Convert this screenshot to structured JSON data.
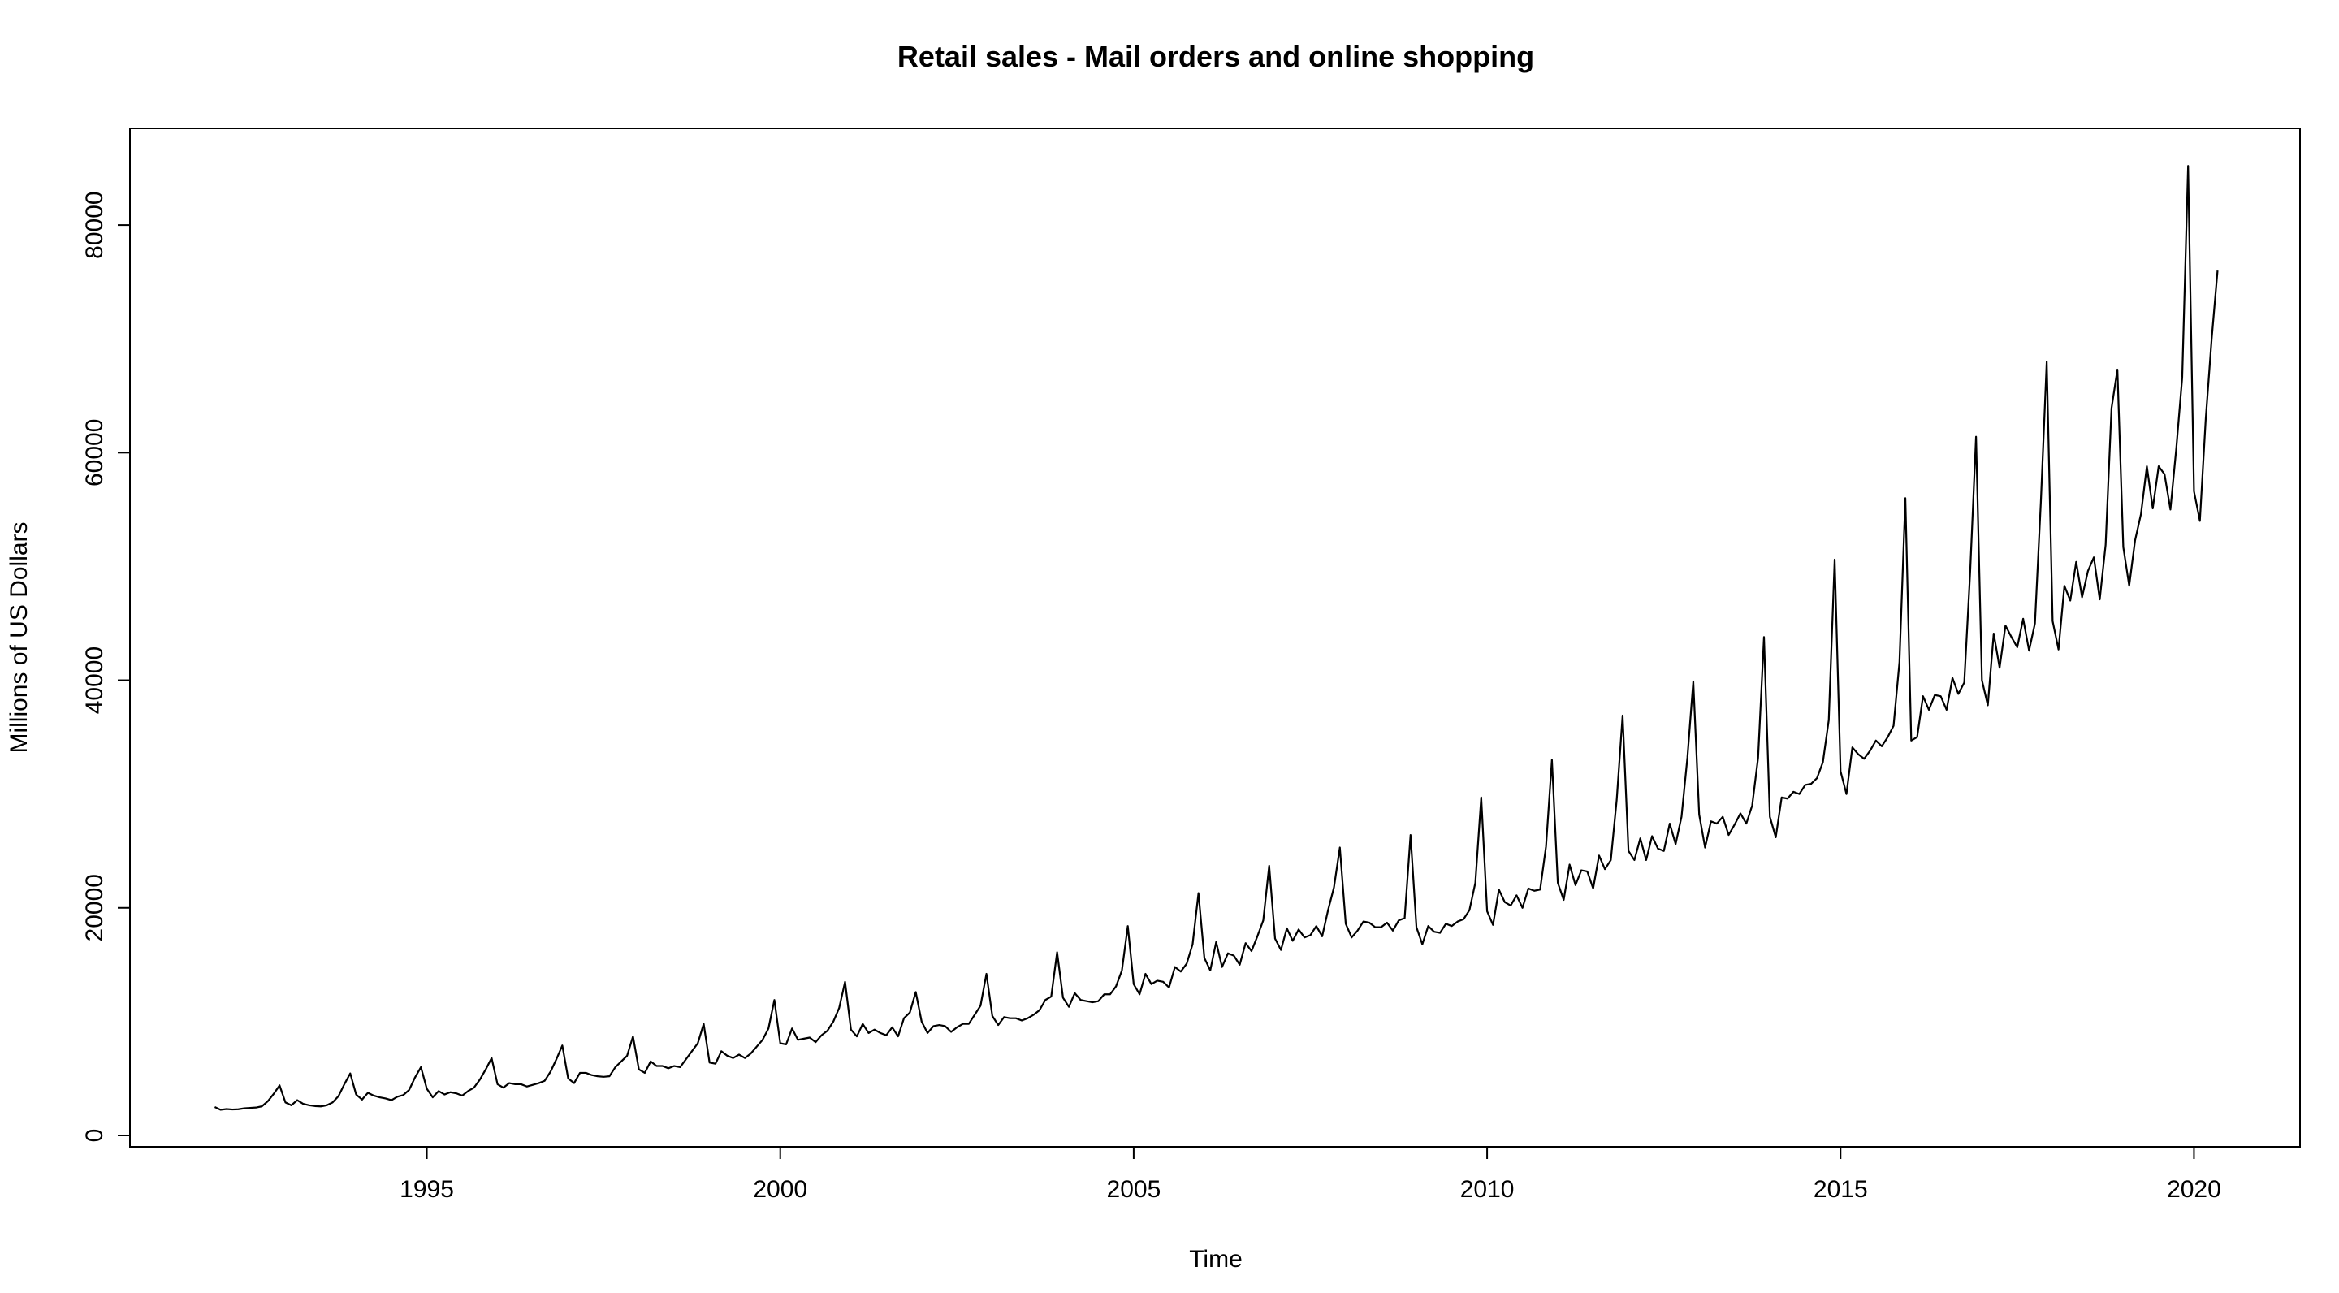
{
  "chart_data": {
    "type": "line",
    "title": "Retail sales - Mail orders and online shopping",
    "xlabel": "Time",
    "ylabel": "Millions of US Dollars",
    "xlim": [
      1990.8,
      2021.5
    ],
    "ylim": [
      -1000,
      88500
    ],
    "x_ticks": [
      1995,
      2000,
      2005,
      2010,
      2015,
      2020
    ],
    "y_ticks": [
      0,
      20000,
      40000,
      60000,
      80000
    ],
    "grid": false,
    "line_color": "#000000",
    "start": 1992.0,
    "frequency": 12,
    "series": [
      {
        "values": [
          2500,
          2250,
          2320,
          2280,
          2300,
          2380,
          2420,
          2450,
          2560,
          3000,
          3650,
          4400,
          2900,
          2650,
          3100,
          2780,
          2650,
          2580,
          2550,
          2650,
          2900,
          3450,
          4500,
          5450,
          3600,
          3150,
          3750,
          3500,
          3350,
          3250,
          3100,
          3400,
          3550,
          4000,
          5100,
          6000,
          4100,
          3350,
          3900,
          3600,
          3800,
          3700,
          3500,
          3900,
          4200,
          4900,
          5800,
          6800,
          4500,
          4200,
          4600,
          4500,
          4500,
          4300,
          4450,
          4600,
          4800,
          5600,
          6700,
          7900,
          5000,
          4600,
          5500,
          5500,
          5300,
          5200,
          5150,
          5200,
          6000,
          6500,
          7000,
          8700,
          5800,
          5500,
          6500,
          6100,
          6100,
          5900,
          6100,
          6000,
          6700,
          7400,
          8100,
          9800,
          6400,
          6300,
          7400,
          7000,
          6800,
          7100,
          6800,
          7200,
          7800,
          8400,
          9400,
          11900,
          8100,
          8000,
          9400,
          8400,
          8500,
          8600,
          8200,
          8800,
          9200,
          10000,
          11200,
          13500,
          9300,
          8700,
          9800,
          9000,
          9300,
          9000,
          8800,
          9500,
          8700,
          10300,
          10800,
          12600,
          10000,
          9000,
          9600,
          9700,
          9600,
          9100,
          9500,
          9800,
          9800,
          10600,
          11400,
          14200,
          10500,
          9700,
          10400,
          10300,
          10300,
          10100,
          10300,
          10600,
          11000,
          11900,
          12200,
          16100,
          12100,
          11300,
          12500,
          11900,
          11800,
          11700,
          11800,
          12400,
          12400,
          13100,
          14500,
          18400,
          13300,
          12400,
          14200,
          13300,
          13600,
          13500,
          13000,
          14800,
          14400,
          15100,
          16800,
          21300,
          15600,
          14500,
          17000,
          14800,
          16000,
          15800,
          15000,
          16900,
          16200,
          17500,
          18900,
          23700,
          17300,
          16300,
          18200,
          17100,
          18100,
          17400,
          17600,
          18400,
          17500,
          19800,
          21800,
          25300,
          18600,
          17400,
          18000,
          18800,
          18700,
          18300,
          18300,
          18700,
          18000,
          18900,
          19100,
          26400,
          18300,
          16800,
          18400,
          17900,
          17800,
          18600,
          18400,
          18800,
          19000,
          19800,
          22200,
          29700,
          19700,
          18500,
          21600,
          20500,
          20200,
          21100,
          20000,
          21700,
          21500,
          21600,
          25400,
          33000,
          22200,
          20700,
          23800,
          22000,
          23300,
          23200,
          21700,
          24600,
          23400,
          24200,
          29500,
          36900,
          25000,
          24200,
          26100,
          24200,
          26300,
          25200,
          25000,
          27400,
          25600,
          28000,
          33200,
          39900,
          28200,
          25300,
          27600,
          27400,
          28000,
          26400,
          27300,
          28300,
          27400,
          29000,
          33200,
          43800,
          28000,
          26200,
          29700,
          29600,
          30200,
          30000,
          30800,
          30900,
          31400,
          32800,
          36500,
          50600,
          32000,
          30000,
          34100,
          33500,
          33100,
          33800,
          34700,
          34200,
          35000,
          36000,
          41600,
          56000,
          34700,
          35000,
          38600,
          37400,
          38700,
          38600,
          37400,
          40200,
          38800,
          39800,
          49500,
          61400,
          40000,
          37800,
          44100,
          41100,
          44800,
          43800,
          42900,
          45400,
          42600,
          45000,
          55600,
          68000,
          45200,
          42700,
          48300,
          47000,
          50400,
          47300,
          49600,
          50800,
          47100,
          51900,
          63900,
          67300,
          51700,
          48300,
          52300,
          54600,
          58800,
          55100,
          58800,
          58100,
          55000,
          60400,
          66600,
          85200,
          56600,
          54000,
          63000,
          70000,
          76000
        ]
      }
    ]
  }
}
